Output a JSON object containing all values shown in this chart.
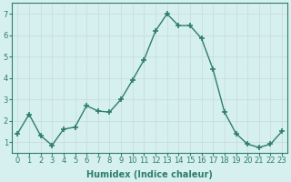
{
  "x": [
    0,
    1,
    2,
    3,
    4,
    5,
    6,
    7,
    8,
    9,
    10,
    11,
    12,
    13,
    14,
    15,
    16,
    17,
    18,
    19,
    20,
    21,
    22,
    23
  ],
  "y": [
    1.4,
    2.3,
    1.3,
    0.85,
    1.6,
    1.7,
    2.7,
    2.45,
    2.4,
    3.0,
    3.9,
    4.85,
    6.2,
    7.0,
    6.45,
    6.45,
    5.85,
    4.4,
    2.4,
    1.4,
    0.9,
    0.75,
    0.9,
    1.5
  ],
  "line_color": "#2e7d6e",
  "marker": "+",
  "marker_size": 4.0,
  "linewidth": 1.0,
  "bg_color": "#d6f0ef",
  "grid_color": "#c8dedd",
  "xlabel": "Humidex (Indice chaleur)",
  "xlabel_fontsize": 7,
  "ylim": [
    0.5,
    7.5
  ],
  "xlim": [
    -0.5,
    23.5
  ],
  "yticks": [
    1,
    2,
    3,
    4,
    5,
    6,
    7
  ],
  "xticks": [
    0,
    1,
    2,
    3,
    4,
    5,
    6,
    7,
    8,
    9,
    10,
    11,
    12,
    13,
    14,
    15,
    16,
    17,
    18,
    19,
    20,
    21,
    22,
    23
  ],
  "tick_fontsize": 6,
  "spine_color": "#2e7d6e"
}
